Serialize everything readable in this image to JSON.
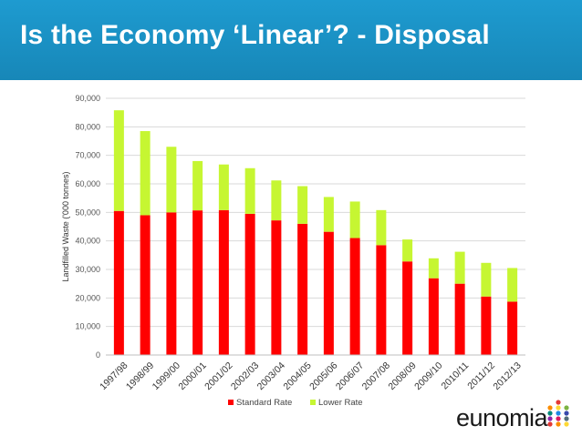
{
  "slide": {
    "title": "Is the Economy ‘Linear’? - Disposal"
  },
  "chart_data": {
    "type": "bar",
    "stacked": true,
    "title": "",
    "xlabel": "",
    "ylabel": "Landfilled Waste ('000 tonnes)",
    "ylim": [
      0,
      90000
    ],
    "yticks": [
      0,
      10000,
      20000,
      30000,
      40000,
      50000,
      60000,
      70000,
      80000,
      90000
    ],
    "ytick_labels": [
      "0",
      "10,000",
      "20,000",
      "30,000",
      "40,000",
      "50,000",
      "60,000",
      "70,000",
      "80,000",
      "90,000"
    ],
    "grid": true,
    "legend_position": "bottom",
    "categories": [
      "1997/98",
      "1998/99",
      "1999/00",
      "2000/01",
      "2001/02",
      "2002/03",
      "2003/04",
      "2004/05",
      "2005/06",
      "2006/07",
      "2007/08",
      "2008/09",
      "2009/10",
      "2010/11",
      "2011/12",
      "2012/13"
    ],
    "series": [
      {
        "name": "Standard Rate",
        "color": "#ff0000",
        "values": [
          50500,
          49000,
          50000,
          50700,
          50800,
          49500,
          47200,
          46000,
          43200,
          41000,
          38500,
          32800,
          26900,
          25000,
          20500,
          18700
        ]
      },
      {
        "name": "Lower Rate",
        "color": "#c6f632",
        "values": [
          35300,
          29500,
          23000,
          17300,
          16000,
          16000,
          14000,
          13200,
          12200,
          12800,
          12300,
          7700,
          7000,
          11200,
          11800,
          11800
        ]
      }
    ]
  },
  "logo": {
    "text": "eunomia",
    "dot_colors": [
      "#e53935",
      "#fb8c00",
      "#fdd835",
      "#7cb342",
      "#00897b",
      "#1e88e5",
      "#3949ab",
      "#8e24aa",
      "#d81b60",
      "#546e7a"
    ]
  }
}
